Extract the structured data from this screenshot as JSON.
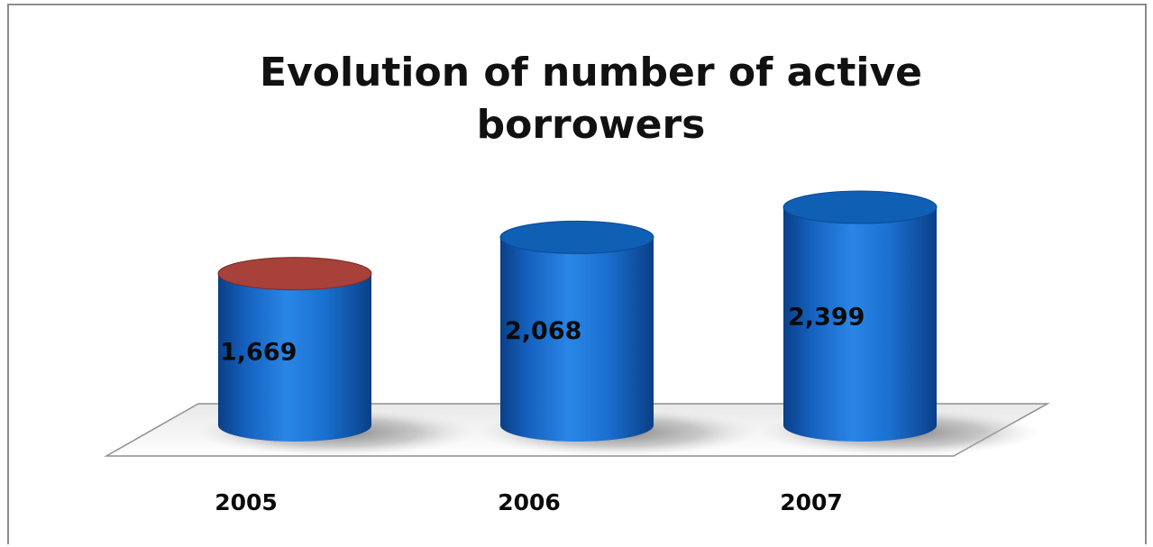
{
  "chart_data": {
    "type": "bar",
    "title": "Evolution of number of active\nborrowers",
    "categories": [
      "2005",
      "2006",
      "2007"
    ],
    "values": [
      1669,
      2068,
      2399
    ],
    "value_labels": [
      "1,669",
      "2,068",
      "2,399"
    ],
    "ylim": [
      0,
      2600
    ],
    "grid": false,
    "legend": "none",
    "colors": {
      "bar": "#1a6fd0",
      "bar_dark": "#0a3f86",
      "bar_top": "#0f5fb4",
      "highlight_top": "#a8413a",
      "floor": "#ffffff",
      "floor_shadow": "#b0b0b0"
    },
    "highlight_top_index": 0
  }
}
